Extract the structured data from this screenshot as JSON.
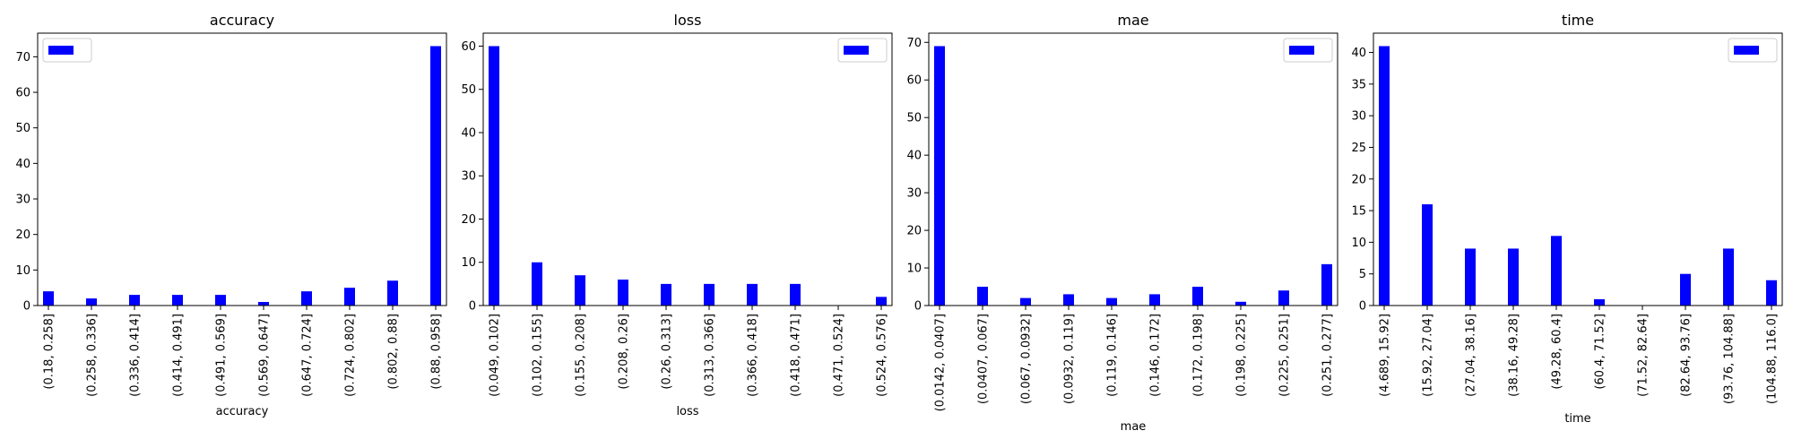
{
  "chart_data": [
    {
      "type": "bar",
      "title": "accuracy",
      "xlabel": "accuracy",
      "ylabel": "",
      "ylim": [
        0,
        76.65
      ],
      "yticks": [
        0,
        10,
        20,
        30,
        40,
        50,
        60,
        70
      ],
      "categories": [
        "(0.18, 0.258]",
        "(0.258, 0.336]",
        "(0.336, 0.414]",
        "(0.414, 0.491]",
        "(0.491, 0.569]",
        "(0.569, 0.647]",
        "(0.647, 0.724]",
        "(0.724, 0.802]",
        "(0.802, 0.88]",
        "(0.88, 0.958]"
      ],
      "series": [
        {
          "values": [
            4,
            2,
            3,
            3,
            3,
            1,
            4,
            5,
            7,
            73
          ]
        }
      ],
      "legend": "upper left",
      "grid": false
    },
    {
      "type": "bar",
      "title": "loss",
      "xlabel": "loss",
      "ylabel": "",
      "ylim": [
        0,
        63
      ],
      "yticks": [
        0,
        10,
        20,
        30,
        40,
        50,
        60
      ],
      "categories": [
        "(0.049, 0.102]",
        "(0.102, 0.155]",
        "(0.155, 0.208]",
        "(0.208, 0.26]",
        "(0.26, 0.313]",
        "(0.313, 0.366]",
        "(0.366, 0.418]",
        "(0.418, 0.471]",
        "(0.471, 0.524]",
        "(0.524, 0.576]"
      ],
      "series": [
        {
          "values": [
            60,
            10,
            7,
            6,
            5,
            5,
            5,
            5,
            0,
            2
          ]
        }
      ],
      "legend": "upper right",
      "grid": false
    },
    {
      "type": "bar",
      "title": "mae",
      "xlabel": "mae",
      "ylabel": "",
      "ylim": [
        0,
        72.45
      ],
      "yticks": [
        0,
        10,
        20,
        30,
        40,
        50,
        60,
        70
      ],
      "categories": [
        "(0.0142, 0.0407]",
        "(0.0407, 0.067]",
        "(0.067, 0.0932]",
        "(0.0932, 0.119]",
        "(0.119, 0.146]",
        "(0.146, 0.172]",
        "(0.172, 0.198]",
        "(0.198, 0.225]",
        "(0.225, 0.251]",
        "(0.251, 0.277]"
      ],
      "series": [
        {
          "values": [
            69,
            5,
            2,
            3,
            2,
            3,
            5,
            1,
            4,
            11
          ]
        }
      ],
      "legend": "upper right",
      "grid": false
    },
    {
      "type": "bar",
      "title": "time",
      "xlabel": "time",
      "ylabel": "",
      "ylim": [
        0,
        43.05
      ],
      "yticks": [
        0,
        5,
        10,
        15,
        20,
        25,
        30,
        35,
        40
      ],
      "categories": [
        "(4.689, 15.92]",
        "(15.92, 27.04]",
        "(27.04, 38.16]",
        "(38.16, 49.28]",
        "(49.28, 60.4]",
        "(60.4, 71.52]",
        "(71.52, 82.64]",
        "(82.64, 93.76]",
        "(93.76, 104.88]",
        "(104.88, 116.0]"
      ],
      "series": [
        {
          "values": [
            41,
            16,
            9,
            9,
            11,
            1,
            0,
            5,
            9,
            4
          ]
        }
      ],
      "legend": "upper right",
      "grid": false
    }
  ],
  "colors": {
    "bar": "#0000ff",
    "axis": "#000000",
    "legend_border": "#cccccc",
    "background": "#ffffff"
  }
}
